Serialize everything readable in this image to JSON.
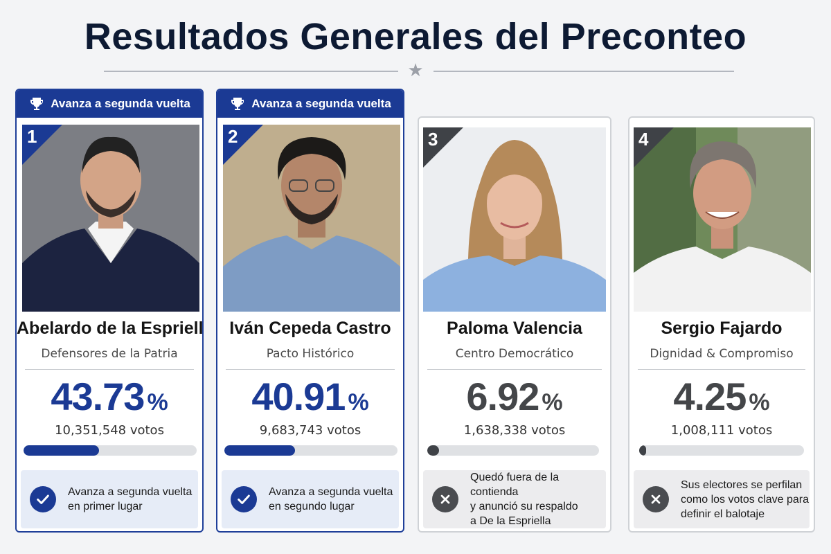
{
  "title": "Resultados Generales del Preconteo",
  "divider_icon": "star-icon",
  "banner_label": "Avanza a segunda vuelta",
  "colors": {
    "winner_accent": "#1b3a94",
    "loser_accent": "#3f4247",
    "background": "#f3f4f6"
  },
  "candidates": [
    {
      "rank": "1",
      "name": "Abelardo de la Espriella",
      "party": "Defensores de la Patria",
      "percent": "43.73",
      "percent_sign": "%",
      "share": 43.73,
      "votes": "10,351,548 votos",
      "advances": true,
      "status_icon": "check-icon",
      "status_lines": [
        "Avanza a segunda vuelta",
        "en primer lugar"
      ]
    },
    {
      "rank": "2",
      "name": "Iván Cepeda Castro",
      "party": "Pacto Histórico",
      "percent": "40.91",
      "percent_sign": "%",
      "share": 40.91,
      "votes": "9,683,743 votos",
      "advances": true,
      "status_icon": "check-icon",
      "status_lines": [
        "Avanza a segunda vuelta",
        "en segundo lugar"
      ]
    },
    {
      "rank": "3",
      "name": "Paloma Valencia",
      "party": "Centro Democrático",
      "percent": "6.92",
      "percent_sign": "%",
      "share": 6.92,
      "votes": "1,638,338 votos",
      "advances": false,
      "status_icon": "close-icon",
      "status_lines": [
        "Quedó fuera de la contienda",
        "y anunció su respaldo",
        "a De la Espriella"
      ]
    },
    {
      "rank": "4",
      "name": "Sergio Fajardo",
      "party": "Dignidad & Compromiso",
      "percent": "4.25",
      "percent_sign": "%",
      "share": 4.25,
      "votes": "1,008,111 votos",
      "advances": false,
      "status_icon": "close-icon",
      "status_lines": [
        "Sus electores se perfilan",
        "como los votos clave para",
        "definir el balotaje"
      ]
    }
  ]
}
